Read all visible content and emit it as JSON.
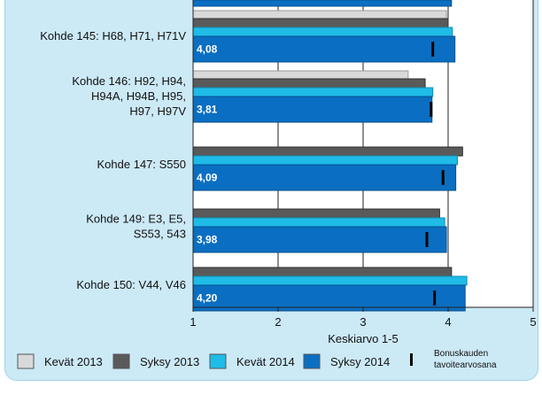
{
  "chart_data": {
    "type": "bar",
    "orientation": "horizontal",
    "title": "",
    "xlabel": "Keskiarvo 1-5",
    "xlim": [
      1,
      5
    ],
    "x_ticks": [
      "1",
      "2",
      "3",
      "4",
      "5"
    ],
    "grid": true,
    "legend_placement": "bottom",
    "categories": [
      {
        "lines": [
          "Kohde 145: H68, H71, H71V"
        ],
        "value_label": "4,08",
        "target": 3.82
      },
      {
        "lines": [
          "Kohde 146: H92, H94,",
          "H94A, H94B, H95,",
          "H97, H97V"
        ],
        "value_label": "3,81",
        "target": 3.8
      },
      {
        "lines": [
          "Kohde 147: S550"
        ],
        "value_label": "4,09",
        "target": 3.94
      },
      {
        "lines": [
          "Kohde 149: E3, E5,",
          "S553, 543"
        ],
        "value_label": "3,98",
        "target": 3.75
      },
      {
        "lines": [
          "Kohde 150: V44, V46"
        ],
        "value_label": "4,20",
        "target": 3.84
      }
    ],
    "series": [
      {
        "name": "Kevät 2013",
        "color": "#d9d9d9",
        "values": [
          3.98,
          3.53,
          null,
          null,
          null
        ]
      },
      {
        "name": "Syksy 2013",
        "color": "#5a5a5a",
        "values": [
          4.0,
          3.73,
          4.17,
          3.9,
          4.04
        ]
      },
      {
        "name": "Kevät 2014",
        "color": "#1fbce8",
        "values": [
          4.05,
          3.82,
          4.11,
          3.96,
          4.22
        ]
      },
      {
        "name": "Syksy 2014",
        "color": "#0a6fc2",
        "values": [
          4.08,
          3.81,
          4.09,
          3.98,
          4.2
        ]
      }
    ],
    "target_marker_label": [
      "Bonuskauden",
      "tavoitearvosana"
    ],
    "top_partial_bar": {
      "series": "Syksy 2014",
      "value": 4.04
    }
  }
}
